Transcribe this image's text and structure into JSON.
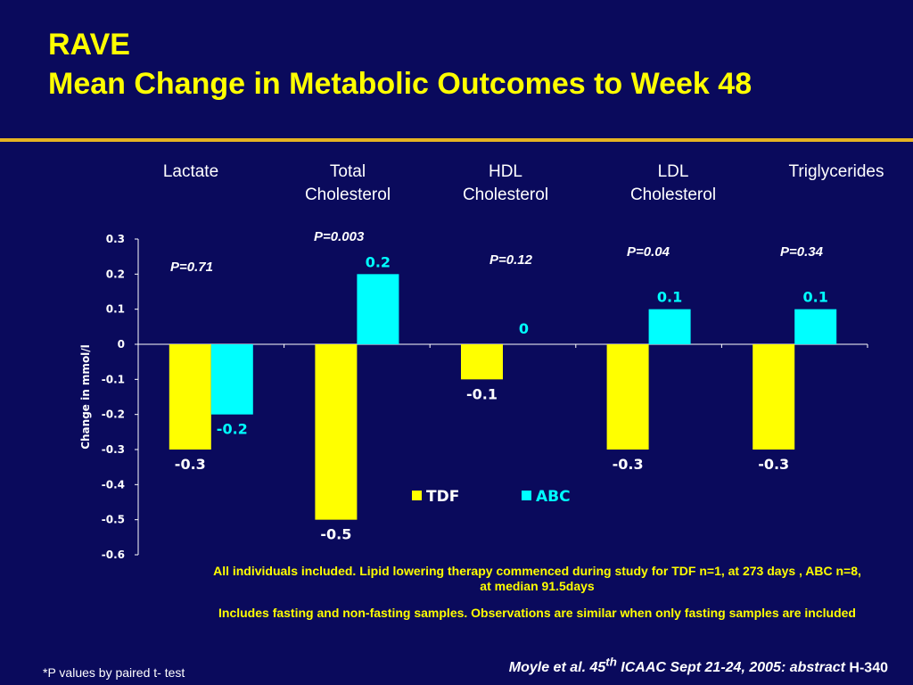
{
  "slide": {
    "title_line1": "RAVE",
    "title_line2": "Mean Change in Metabolic Outcomes to Week 48"
  },
  "category_headers": [
    "Lactate",
    "Total\nCholesterol",
    "HDL\nCholesterol",
    "LDL\nCholesterol",
    "Triglycerides"
  ],
  "p_values": [
    "P=0.71",
    "P=0.003",
    "P=0.12",
    "P=0.04",
    "P=0.34"
  ],
  "notes": {
    "line1": "All individuals included. Lipid lowering therapy commenced during study for  TDF n=1, at 273 days ,  ABC n=8, at median 91.5days",
    "line2": "Includes fasting and non-fasting samples. Observations are similar when only fasting samples are included"
  },
  "citation": {
    "text": "Moyle et al. 45",
    "sup": "th",
    "rest": " ICAAC Sept 21-24, 2005: abstract",
    "code": " H-340"
  },
  "footnote": "*P values by paired t- test",
  "colors": {
    "background": "#0a0a5c",
    "title": "#ffff00",
    "tdf": "#ffff00",
    "abc": "#00ffff",
    "rule": "#e6b422"
  },
  "chart_data": {
    "type": "bar",
    "categories": [
      "Lactate",
      "Total Cholesterol",
      "HDL Cholesterol",
      "LDL Cholesterol",
      "Triglycerides"
    ],
    "series": [
      {
        "name": "TDF",
        "values": [
          -0.3,
          -0.5,
          -0.1,
          -0.3,
          -0.3
        ],
        "labels": [
          "-0.3",
          "-0.5",
          "-0.1",
          "-0.3",
          "-0.3"
        ]
      },
      {
        "name": "ABC",
        "values": [
          -0.2,
          0.2,
          0,
          0.1,
          0.1
        ],
        "labels": [
          "-0.2",
          "0.2",
          "0",
          "0.1",
          "0.1"
        ]
      }
    ],
    "ylabel": "Change in mmol/l",
    "ylim": [
      -0.6,
      0.3
    ],
    "yticks": [
      "0.3",
      "0.2",
      "0.1",
      "0",
      "-0.1",
      "-0.2",
      "-0.3",
      "-0.4",
      "-0.5",
      "-0.6"
    ],
    "legend_position": "bottom-center",
    "grid": false
  }
}
